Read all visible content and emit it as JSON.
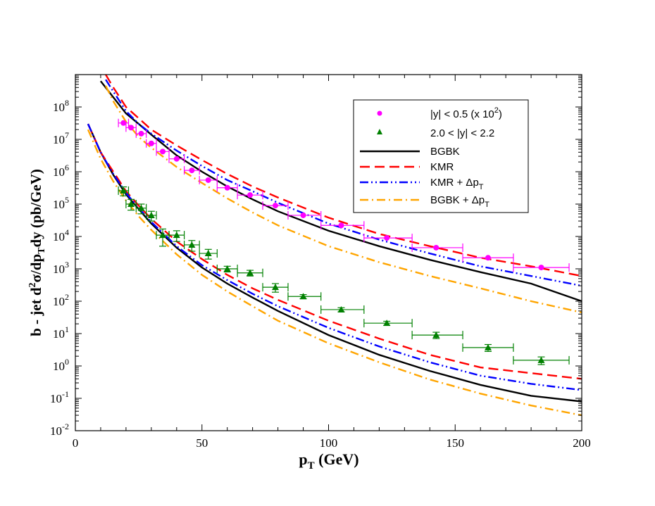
{
  "chart_data": {
    "type": "scatter",
    "title": "",
    "xlabel": {
      "main": "p",
      "sub": "T",
      "rest": " (GeV)"
    },
    "ylabel": {
      "parts": [
        {
          "t": "b - jet d",
          "s": ""
        },
        {
          "t": "2",
          "s": "sup"
        },
        {
          "t": "σ/dp",
          "s": ""
        },
        {
          "t": "T",
          "s": "sub"
        },
        {
          "t": "dy (pb/GeV)",
          "s": ""
        }
      ]
    },
    "xlim": [
      0,
      200
    ],
    "ylim_log10": [
      -2,
      9
    ],
    "x_ticks": [
      0,
      50,
      100,
      150,
      200
    ],
    "x_tick_labels": [
      "0",
      "50",
      "100",
      "150",
      "200"
    ],
    "y_ticks_exp": [
      -2,
      -1,
      0,
      1,
      2,
      3,
      4,
      5,
      6,
      7,
      8
    ],
    "y_tick_labels": [
      "-2",
      "-1",
      "0",
      "1",
      "2",
      "3",
      "4",
      "5",
      "6",
      "7",
      "8"
    ],
    "y_tick_base": "10",
    "colors": {
      "central": "#ff00ff",
      "forward": "#008000",
      "bgbk": "#000000",
      "kmr": "#ff0000",
      "kmr_dpt": "#0000ff",
      "bgbk_dpt": "#ffa500"
    },
    "legend": [
      {
        "label": "|y| < 0.5 (x 10",
        "sup": "2",
        "tail": ")",
        "kind": "circle",
        "color": "#ff00ff"
      },
      {
        "label": "2.0 < |y| < 2.2",
        "kind": "triangle",
        "color": "#008000"
      },
      {
        "label": "BGBK",
        "kind": "solid",
        "color": "#000000"
      },
      {
        "label": "KMR",
        "kind": "dashed",
        "color": "#ff0000"
      },
      {
        "label": "KMR + Δp",
        "sub": "T",
        "kind": "dashdotdot",
        "color": "#0000ff"
      },
      {
        "label": "BGBK + Δp",
        "sub": "T",
        "kind": "dashdot",
        "color": "#ffa500"
      }
    ],
    "data_series": [
      {
        "name": "|y| < 0.5 (x 10^2)",
        "marker": "circle",
        "color": "#ff00ff",
        "points": [
          {
            "x": 19,
            "xlo": 17,
            "xhi": 21,
            "y": 32000000.0
          },
          {
            "x": 22,
            "xlo": 20,
            "xhi": 24,
            "y": 23000000.0
          },
          {
            "x": 26,
            "xlo": 24,
            "xhi": 28,
            "y": 15000000.0
          },
          {
            "x": 30,
            "xlo": 28,
            "xhi": 32,
            "y": 7500000.0
          },
          {
            "x": 34.5,
            "xlo": 32,
            "xhi": 37,
            "y": 4200000.0
          },
          {
            "x": 40,
            "xlo": 37,
            "xhi": 43,
            "y": 2500000.0
          },
          {
            "x": 46,
            "xlo": 43,
            "xhi": 49,
            "y": 1100000.0
          },
          {
            "x": 52.5,
            "xlo": 49,
            "xhi": 56,
            "y": 550000.0
          },
          {
            "x": 60,
            "xlo": 56,
            "xhi": 64,
            "y": 320000.0
          },
          {
            "x": 69,
            "xlo": 64,
            "xhi": 74,
            "y": 190000.0
          },
          {
            "x": 79,
            "xlo": 74,
            "xhi": 84,
            "y": 90000.0
          },
          {
            "x": 90,
            "xlo": 84,
            "xhi": 97,
            "y": 45000.0
          },
          {
            "x": 105,
            "xlo": 97,
            "xhi": 114,
            "y": 22000.0
          },
          {
            "x": 123,
            "xlo": 114,
            "xhi": 133,
            "y": 9000.0
          },
          {
            "x": 142.5,
            "xlo": 133,
            "xhi": 153,
            "y": 4500.0
          },
          {
            "x": 163,
            "xlo": 153,
            "xhi": 173,
            "y": 2200.0
          },
          {
            "x": 184,
            "xlo": 173,
            "xhi": 195,
            "y": 1100.0
          }
        ]
      },
      {
        "name": "2.0 < |y| < 2.2",
        "marker": "triangle",
        "color": "#008000",
        "points": [
          {
            "x": 19,
            "xlo": 17,
            "xhi": 21,
            "y": 260000.0,
            "ylo": 180000.0,
            "yhi": 340000.0
          },
          {
            "x": 22,
            "xlo": 20,
            "xhi": 24,
            "y": 100000.0,
            "ylo": 65000.0,
            "yhi": 140000.0
          },
          {
            "x": 26,
            "xlo": 24,
            "xhi": 28,
            "y": 75000.0,
            "ylo": 50000.0,
            "yhi": 100000.0
          },
          {
            "x": 30,
            "xlo": 28,
            "xhi": 32,
            "y": 45000.0,
            "ylo": 30000.0,
            "yhi": 60000.0
          },
          {
            "x": 34.5,
            "xlo": 32,
            "xhi": 37,
            "y": 11000.0,
            "ylo": 5000.0,
            "yhi": 17000.0
          },
          {
            "x": 40,
            "xlo": 37,
            "xhi": 43,
            "y": 11000.0,
            "ylo": 7000.0,
            "yhi": 15000.0
          },
          {
            "x": 46,
            "xlo": 43,
            "xhi": 49,
            "y": 5500.0,
            "ylo": 3500.0,
            "yhi": 7500.0
          },
          {
            "x": 52.5,
            "xlo": 49,
            "xhi": 56,
            "y": 3000.0,
            "ylo": 2000.0,
            "yhi": 4000.0
          },
          {
            "x": 60,
            "xlo": 56,
            "xhi": 64,
            "y": 1000.0,
            "ylo": 800.0,
            "yhi": 1200.0
          },
          {
            "x": 69,
            "xlo": 64,
            "xhi": 74,
            "y": 750.0,
            "ylo": 600.0,
            "yhi": 900.0
          },
          {
            "x": 79,
            "xlo": 74,
            "xhi": 84,
            "y": 270.0,
            "ylo": 190.0,
            "yhi": 350.0
          },
          {
            "x": 90,
            "xlo": 84,
            "xhi": 97,
            "y": 140.0,
            "ylo": 120.0,
            "yhi": 160.0
          },
          {
            "x": 105,
            "xlo": 97,
            "xhi": 114,
            "y": 55,
            "ylo": 47,
            "yhi": 63
          },
          {
            "x": 123,
            "xlo": 114,
            "xhi": 133,
            "y": 21,
            "ylo": 18,
            "yhi": 24
          },
          {
            "x": 142.5,
            "xlo": 133,
            "xhi": 153,
            "y": 9,
            "ylo": 7,
            "yhi": 11
          },
          {
            "x": 163,
            "xlo": 153,
            "xhi": 173,
            "y": 3.7,
            "ylo": 2.8,
            "yhi": 4.6
          },
          {
            "x": 184,
            "xlo": 173,
            "xhi": 195,
            "y": 1.5,
            "ylo": 1.1,
            "yhi": 1.9
          }
        ]
      }
    ],
    "curves": [
      {
        "name": "BGBK",
        "group": "central",
        "style": "solid",
        "color": "#000000",
        "x": [
          10,
          15,
          20,
          25,
          30,
          40,
          50,
          60,
          70,
          80,
          100,
          120,
          140,
          160,
          180,
          200
        ],
        "y": [
          630000000.0,
          200000000.0,
          63000000.0,
          30000000.0,
          14000000.0,
          3200000.0,
          1000000.0,
          350000.0,
          140000.0,
          60000.0,
          15000.0,
          5000.0,
          1900.0,
          790.0,
          350.0,
          100.0
        ]
      },
      {
        "name": "KMR",
        "group": "central",
        "style": "dashed",
        "color": "#ff0000",
        "x": [
          12,
          15,
          20,
          25,
          30,
          40,
          50,
          60,
          70,
          80,
          100,
          120,
          140,
          160,
          180,
          200
        ],
        "y": [
          1000000000.0,
          400000000.0,
          100000000.0,
          45000000.0,
          20000000.0,
          6500000.0,
          2300000.0,
          850000.0,
          350000.0,
          160000.0,
          38000.0,
          12000.0,
          5000.0,
          2200.0,
          1200.0,
          600.0
        ]
      },
      {
        "name": "KMR + Δp_T",
        "group": "central",
        "style": "dashdotdot",
        "color": "#0000ff",
        "x": [
          12,
          15,
          20,
          25,
          30,
          40,
          50,
          60,
          70,
          80,
          100,
          120,
          140,
          160,
          180,
          200
        ],
        "y": [
          700000000.0,
          300000000.0,
          75000000.0,
          30000000.0,
          15000000.0,
          4500000.0,
          1500000.0,
          550000.0,
          250000.0,
          110000.0,
          25000.0,
          8000.0,
          3000.0,
          1200.0,
          600.0,
          300.0
        ]
      },
      {
        "name": "BGBK + Δp_T",
        "group": "central",
        "style": "dashdot",
        "color": "#ffa500",
        "x": [
          12,
          15,
          20,
          25,
          30,
          40,
          50,
          60,
          70,
          80,
          100,
          120,
          140,
          160,
          180,
          200
        ],
        "y": [
          450000000.0,
          150000000.0,
          35000000.0,
          12000000.0,
          5500000.0,
          1400000.0,
          450000.0,
          150000.0,
          55000.0,
          22000.0,
          5000.0,
          1600.0,
          600.0,
          250.0,
          100.0,
          45.0
        ]
      },
      {
        "name": "BGBK",
        "group": "forward",
        "style": "solid",
        "color": "#000000",
        "x": [
          5,
          10,
          15,
          20,
          25,
          30,
          40,
          50,
          60,
          70,
          80,
          100,
          120,
          140,
          160,
          180,
          200
        ],
        "y": [
          30000000.0,
          4000000.0,
          800000.0,
          200000.0,
          70000.0,
          25000.0,
          4500.0,
          1100.0,
          350.0,
          130.0,
          50.0,
          9.0,
          2.2,
          0.7,
          0.26,
          0.12,
          0.08
        ]
      },
      {
        "name": "KMR",
        "group": "forward",
        "style": "dashed",
        "color": "#ff0000",
        "x": [
          5,
          10,
          15,
          20,
          25,
          30,
          40,
          50,
          60,
          70,
          80,
          100,
          120,
          140,
          160,
          180,
          200
        ],
        "y": [
          30000000.0,
          4000000.0,
          1000000.0,
          250000.0,
          90000.0,
          35000.0,
          7000.0,
          2000.0,
          650.0,
          250.0,
          110.0,
          25.0,
          7.0,
          2.2,
          0.9,
          0.6,
          0.4
        ]
      },
      {
        "name": "KMR + Δp_T",
        "group": "forward",
        "style": "dashdotdot",
        "color": "#0000ff",
        "x": [
          5,
          10,
          15,
          20,
          25,
          30,
          40,
          50,
          60,
          70,
          80,
          100,
          120,
          140,
          160,
          180,
          200
        ],
        "y": [
          30000000.0,
          4000000.0,
          850000.0,
          220000.0,
          75000.0,
          28000.0,
          5000.0,
          1300.0,
          450.0,
          170.0,
          70.0,
          15.0,
          4.0,
          1.3,
          0.5,
          0.28,
          0.18
        ]
      },
      {
        "name": "BGBK + Δp_T",
        "group": "forward",
        "style": "dashdot",
        "color": "#ffa500",
        "x": [
          5,
          10,
          15,
          20,
          25,
          30,
          40,
          50,
          60,
          70,
          80,
          100,
          120,
          140,
          160,
          180,
          200
        ],
        "y": [
          20000000.0,
          2500000.0,
          500000.0,
          130000.0,
          42000.0,
          16000.0,
          2800.0,
          650.0,
          200.0,
          70.0,
          25.0,
          5.0,
          1.3,
          0.38,
          0.14,
          0.06,
          0.03
        ]
      }
    ]
  }
}
